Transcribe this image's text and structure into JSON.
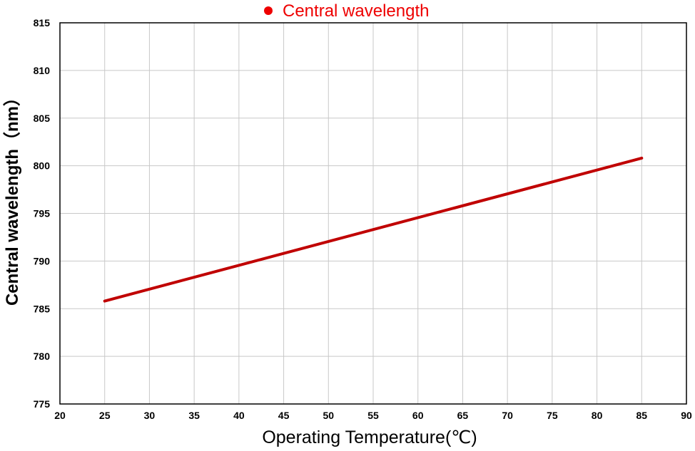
{
  "chart_data": {
    "type": "line",
    "legend_position": "top-center",
    "xlabel": "Operating Temperature(℃)",
    "ylabel": "Central wavelength（nm）",
    "xlim": [
      20,
      90
    ],
    "ylim": [
      775,
      815
    ],
    "xticks": [
      "20",
      "25",
      "30",
      "35",
      "40",
      "45",
      "50",
      "55",
      "60",
      "65",
      "70",
      "75",
      "80",
      "85",
      "90"
    ],
    "yticks": [
      "775",
      "780",
      "785",
      "790",
      "795",
      "800",
      "805",
      "810",
      "815"
    ],
    "grid": true,
    "series": [
      {
        "name": "Central wavelength",
        "color": "#c00000",
        "marker_color": "#ee0000",
        "x": [
          25,
          85
        ],
        "y": [
          785.8,
          800.8
        ]
      }
    ]
  }
}
